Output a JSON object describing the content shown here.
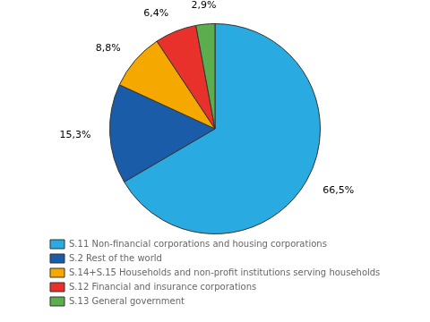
{
  "chart_data": {
    "type": "pie",
    "categories": [
      "S.11 Non-financial corporations and housing corporations",
      "S.2 Rest of the world",
      "S.14+S.15 Households and non-profit institutions serving households",
      "S.12 Financial and insurance corporations",
      "S.13 General government"
    ],
    "values": [
      66.5,
      15.3,
      8.8,
      6.4,
      2.9
    ],
    "value_labels": [
      "66,5%",
      "15,3%",
      "8,8%",
      "6,4%",
      "2,9%"
    ],
    "colors": [
      "#29ABE2",
      "#1A5CA8",
      "#F5A800",
      "#E8312A",
      "#5BAD4E"
    ],
    "data_labels": true,
    "legend": "bottom"
  }
}
